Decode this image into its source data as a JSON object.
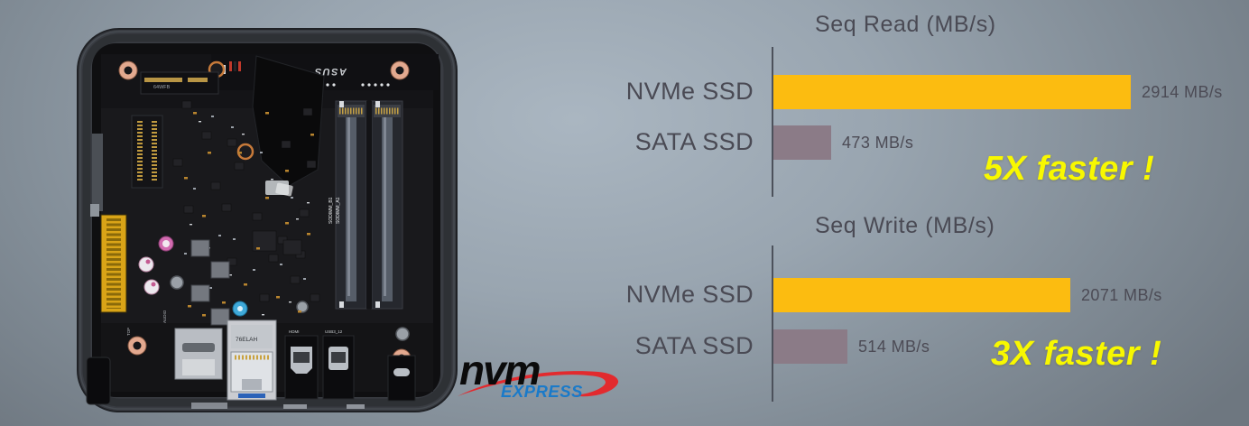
{
  "device": {
    "description": "Opened mini PC chassis showing internal motherboard",
    "board_labels": {
      "brand": "ASUS",
      "sodimm_b1": "SODIMM_B1",
      "sodimm_a1": "SODIMM_A1",
      "lan_sticker": "76ELAH",
      "hdmi": "HDMI",
      "usb": "USB3_12",
      "audio": "AUDIO",
      "top": "TOP",
      "m2": "64WFB"
    }
  },
  "logo": {
    "main": "nvm",
    "sub": "EXPRESS",
    "main_color": "#0b0b0b",
    "sub_color": "#1a7ac9",
    "swoosh_color": "#e22a2e"
  },
  "chart_data": [
    {
      "type": "bar",
      "orientation": "horizontal",
      "title": "Seq Read (MB/s)",
      "categories": [
        "NVMe SSD",
        "SATA SSD"
      ],
      "values": [
        2914,
        473
      ],
      "value_labels": [
        "2914 MB/s",
        "473 MB/s"
      ],
      "xlim": [
        0,
        3500
      ],
      "bar_colors": [
        "#FCBC10",
        "#8B7B87"
      ],
      "grid": false,
      "legend": false,
      "annotation": "5X faster !",
      "annotation_color": "#F8F800"
    },
    {
      "type": "bar",
      "orientation": "horizontal",
      "title": "Seq Write (MB/s)",
      "categories": [
        "NVMe SSD",
        "SATA SSD"
      ],
      "values": [
        2071,
        514
      ],
      "value_labels": [
        "2071 MB/s",
        "514 MB/s"
      ],
      "xlim": [
        0,
        3000
      ],
      "bar_colors": [
        "#FCBC10",
        "#8B7B87"
      ],
      "grid": false,
      "legend": false,
      "annotation": "3X faster !",
      "annotation_color": "#F8F800"
    }
  ],
  "styles": {
    "label_color": "#4a4a54",
    "value_color": "#4c4b55",
    "axis_color": "#4c515b"
  }
}
